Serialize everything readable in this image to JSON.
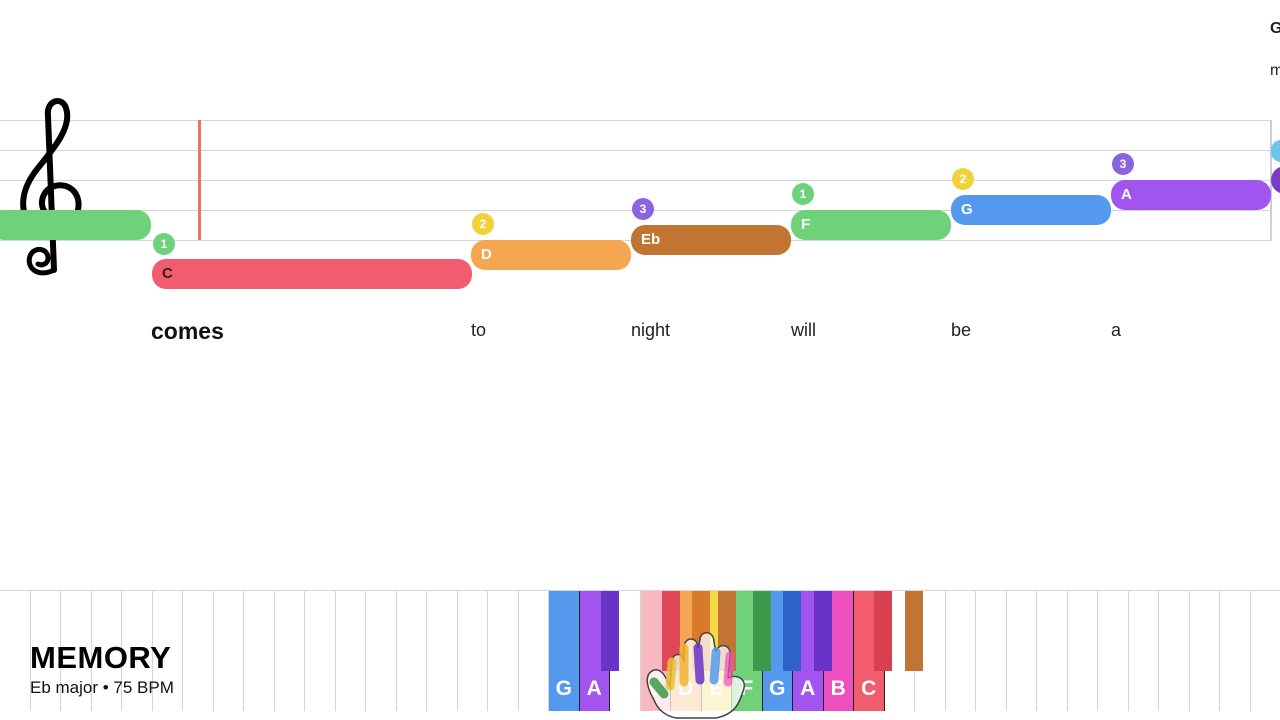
{
  "song": {
    "title": "MEMORY",
    "meta": "Eb major • 75 BPM"
  },
  "corner": {
    "top": "G",
    "sub": "m"
  },
  "notes": [
    {
      "label": "",
      "finger": "",
      "color": "#6fd17a"
    },
    {
      "label": "C",
      "finger": "1",
      "color": "#f25c6f",
      "finger_color": "#6fd17a"
    },
    {
      "label": "D",
      "finger": "2",
      "color": "#f5a650",
      "finger_color": "#f2d23a"
    },
    {
      "label": "Eb",
      "finger": "3",
      "color": "#c27533",
      "finger_color": "#8a64e0"
    },
    {
      "label": "F",
      "finger": "1",
      "color": "#6fd17a",
      "finger_color": "#6fd17a"
    },
    {
      "label": "G",
      "finger": "2",
      "color": "#5599ef",
      "finger_color": "#f2d23a"
    },
    {
      "label": "A",
      "finger": "3",
      "color": "#a155ee",
      "finger_color": "#8a64e0"
    }
  ],
  "lyrics": [
    "comes",
    "to",
    "night",
    "will",
    "be",
    "a"
  ],
  "keyboard": {
    "white_keys": [
      {
        "label": "G",
        "color": "#5599ef"
      },
      {
        "label": "A",
        "color": "#a155ee"
      },
      {
        "label": "",
        "color": ""
      },
      {
        "label": "C",
        "color": "#f8b9c0"
      },
      {
        "label": "D",
        "color": "#f5a650"
      },
      {
        "label": "E",
        "color": "#f5d848"
      },
      {
        "label": "F",
        "color": "#6fd17a"
      },
      {
        "label": "G",
        "color": "#5599ef"
      },
      {
        "label": "A",
        "color": "#a155ee"
      },
      {
        "label": "B",
        "color": "#ee4fbf"
      },
      {
        "label": "C",
        "color": "#f25c6f"
      }
    ],
    "black_keys": [
      {
        "color": "#6a33c7"
      },
      {
        "color": "#e04757"
      },
      {
        "color": "#d97a2a"
      },
      {
        "color": "#c27533"
      },
      {
        "color": "#3c9a4a"
      },
      {
        "color": "#2c62c9"
      },
      {
        "color": "#6a33c7"
      },
      {
        "color": "#d8404f"
      },
      {
        "color": "#c27533"
      }
    ]
  }
}
